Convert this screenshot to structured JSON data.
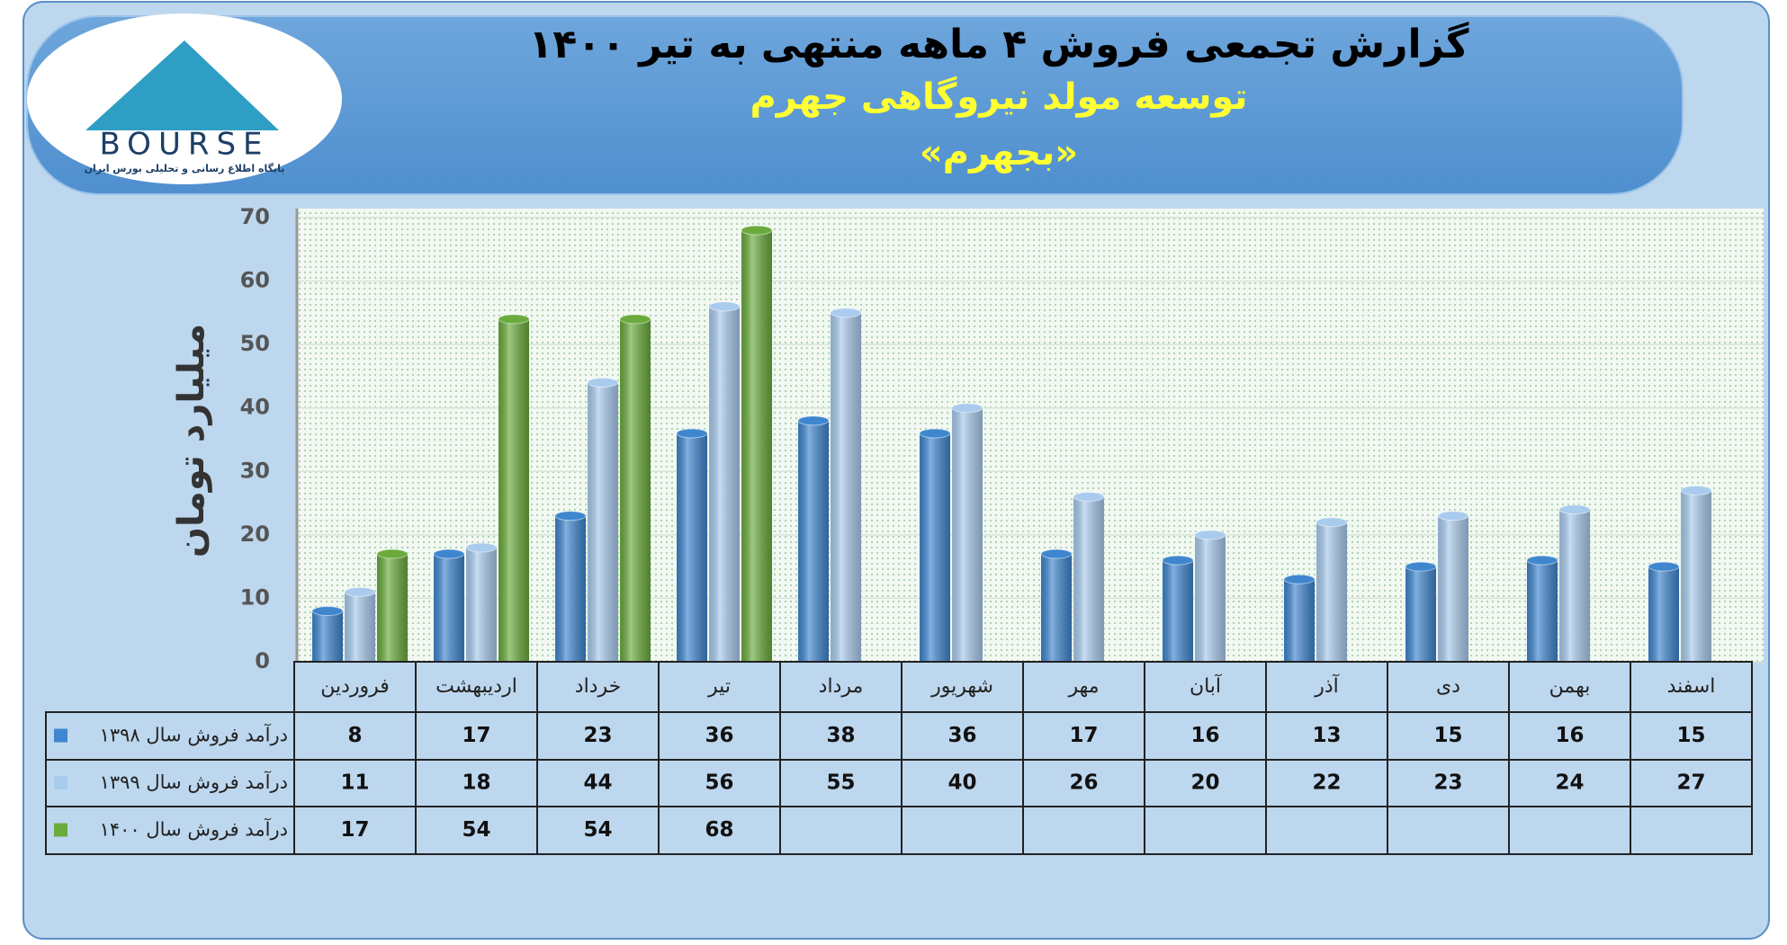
{
  "logo": {
    "name": "BOURSE",
    "tagline": "پایگاه اطلاع رسانی و تحلیلی بورس ایران"
  },
  "chart_data": {
    "type": "bar",
    "title": "گزارش تجمعی فروش ۴ ماهه منتهی به تیر ۱۴۰۰",
    "subtitle": "توسعه مولد نیروگاهی جهرم",
    "symbol": "«بجهرم»",
    "y_label": "میلیارد تومان",
    "categories": [
      "فروردین",
      "اردیبهشت",
      "خرداد",
      "تیر",
      "مرداد",
      "شهریور",
      "مهر",
      "آبان",
      "آذر",
      "دی",
      "بهمن",
      "اسفند"
    ],
    "series": [
      {
        "name": "درآمد فروش سال ۱۳۹۸",
        "color": "#3f86cf",
        "values": [
          8,
          17,
          23,
          36,
          38,
          36,
          17,
          16,
          13,
          15,
          16,
          15
        ]
      },
      {
        "name": "درآمد فروش سال ۱۳۹۹",
        "color": "#a9cbee",
        "values": [
          11,
          18,
          44,
          56,
          55,
          40,
          26,
          20,
          22,
          23,
          24,
          27
        ]
      },
      {
        "name": "درآمد فروش سال ۱۴۰۰",
        "color": "#6aab3c",
        "values": [
          17,
          54,
          54,
          68,
          null,
          null,
          null,
          null,
          null,
          null,
          null,
          null
        ]
      }
    ],
    "ylim": [
      0,
      70
    ],
    "yticks": [
      0,
      10,
      20,
      30,
      40,
      50,
      60,
      70
    ],
    "grid": true
  }
}
